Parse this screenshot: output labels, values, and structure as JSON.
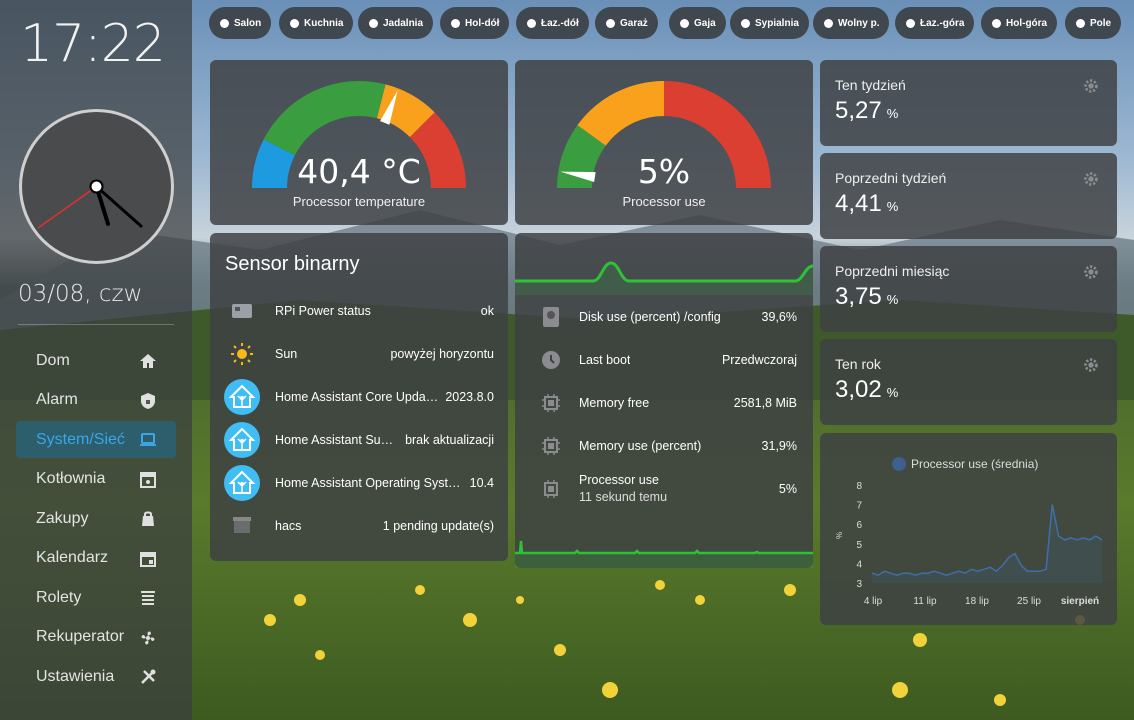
{
  "sidebar": {
    "time": "17:22",
    "date": "03/08, czw",
    "items": [
      {
        "label": "Dom",
        "icon": "home-icon"
      },
      {
        "label": "Alarm",
        "icon": "shield-icon"
      },
      {
        "label": "System/Sieć",
        "icon": "laptop-icon"
      },
      {
        "label": "Kotłownia",
        "icon": "furnace-icon"
      },
      {
        "label": "Zakupy",
        "icon": "shopping-bag-icon"
      },
      {
        "label": "Kalendarz",
        "icon": "calendar-icon"
      },
      {
        "label": "Rolety",
        "icon": "blinds-icon"
      },
      {
        "label": "Rekuperator",
        "icon": "fan-icon"
      },
      {
        "label": "Ustawienia",
        "icon": "tools-icon"
      }
    ],
    "active_index": 2,
    "colors": {
      "active_bg": "#1e6e96",
      "active_text": "#3aa6e8"
    }
  },
  "rooms": [
    "Salon",
    "Kuchnia",
    "Jadalnia",
    "Hol-dół",
    "Łaz.-dół",
    "Garaż",
    "Gaja",
    "Sypialnia",
    "Wolny p.",
    "Łaz.-góra",
    "Hol-góra",
    "Pole"
  ],
  "temp_gauge": {
    "value": "40,4 °C",
    "label": "Processor temperature",
    "fraction": 0.62
  },
  "cpu_gauge": {
    "value": "5%",
    "label": "Processor use",
    "fraction": 0.05
  },
  "gauge_colors": {
    "blue": "#1e9be0",
    "green": "#3a9d3f",
    "orange": "#f9a11c",
    "red": "#da3f32"
  },
  "binary": {
    "title": "Sensor binarny",
    "rows": [
      {
        "name": "RPi Power status",
        "value": "ok",
        "icon": "raspberry-pi-icon"
      },
      {
        "name": "Sun",
        "value": "powyżej horyzontu",
        "icon": "sun-icon"
      },
      {
        "name": "Home Assistant Core Upda…",
        "value": "2023.8.0",
        "icon": "home-assistant-icon"
      },
      {
        "name": "Home Assistant Su…",
        "value": "brak aktualizacji",
        "icon": "home-assistant-icon"
      },
      {
        "name": "Home Assistant Operating Syst…",
        "value": "10.4",
        "icon": "home-assistant-icon"
      },
      {
        "name": "hacs",
        "value": "1 pending update(s)",
        "icon": "hacs-icon"
      }
    ]
  },
  "system": {
    "rows": [
      {
        "name": "Disk use (percent) /config",
        "value": "39,6%",
        "icon": "harddisk-icon"
      },
      {
        "name": "Last boot",
        "value": "Przedwczoraj",
        "icon": "clock-icon"
      },
      {
        "name": "Memory free",
        "value": "2581,8 MiB",
        "icon": "memory-icon"
      },
      {
        "name": "Memory use (percent)",
        "value": "31,9%",
        "icon": "memory-icon"
      },
      {
        "name": "Processor use",
        "sub": "11 sekund temu",
        "value": "5%",
        "icon": "cpu-icon"
      }
    ]
  },
  "stats": [
    {
      "title": "Ten tydzień",
      "value": "5,27",
      "unit": "%"
    },
    {
      "title": "Poprzedni tydzień",
      "value": "4,41",
      "unit": "%"
    },
    {
      "title": "Poprzedni miesiąc",
      "value": "3,75",
      "unit": "%"
    },
    {
      "title": "Ten rok",
      "value": "3,02",
      "unit": "%"
    }
  ],
  "chart_data": {
    "type": "line",
    "series": [
      {
        "name": "Processor use (średnia)",
        "values": [
          3.5,
          3.4,
          3.6,
          3.5,
          3.4,
          3.5,
          3.5,
          3.4,
          3.5,
          3.5,
          3.6,
          3.5,
          3.4,
          3.5,
          3.6,
          3.5,
          3.7,
          3.6,
          3.7,
          3.8,
          3.6,
          3.9,
          4.3,
          4.5,
          3.9,
          3.6,
          3.6,
          3.6,
          3.7,
          7.0,
          5.4,
          5.2,
          5.3,
          5.2,
          5.3,
          5.2,
          5.4,
          5.2
        ]
      }
    ],
    "x_ticks": [
      "4 lip",
      "11 lip",
      "18 lip",
      "25 lip",
      "sierpień"
    ],
    "ylabel": "%",
    "y_ticks": [
      3,
      4,
      5,
      6,
      7,
      8
    ],
    "ylim": [
      3,
      8
    ],
    "color": "#3e6fa8"
  }
}
